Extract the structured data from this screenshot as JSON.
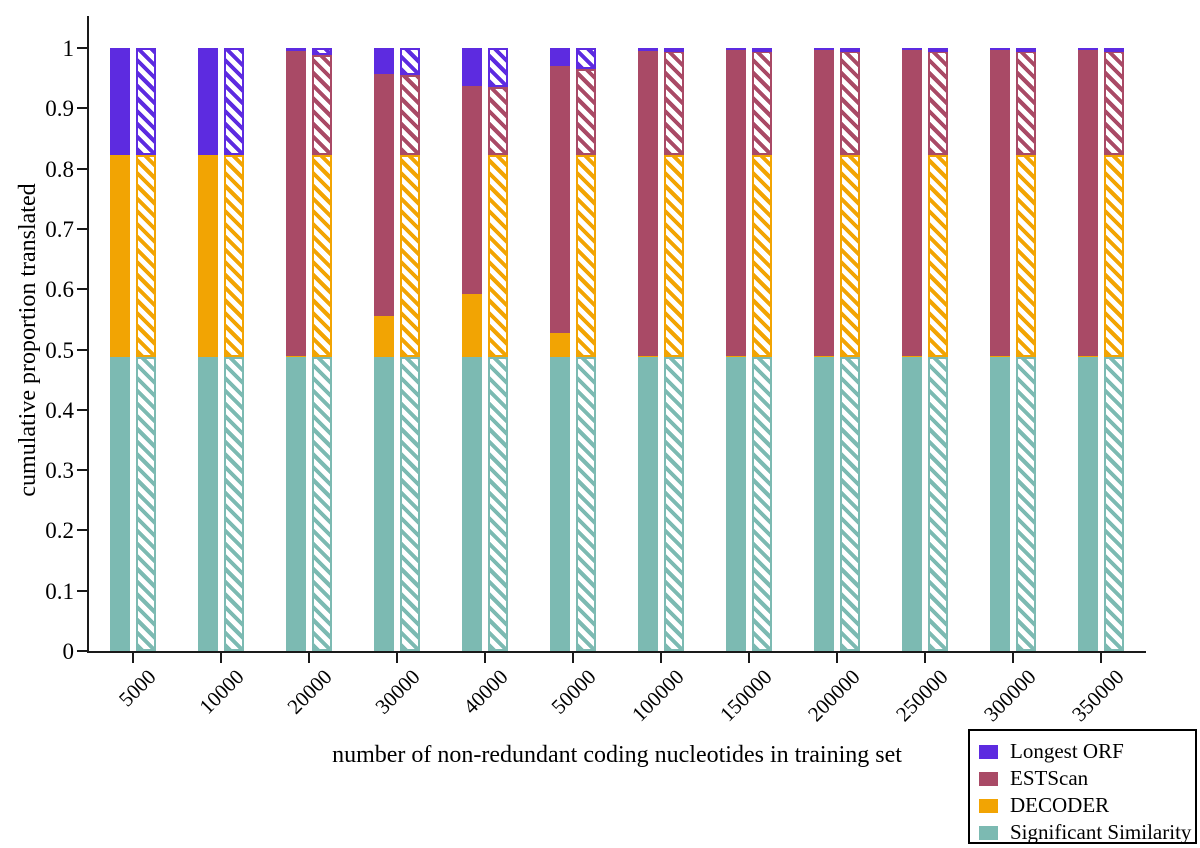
{
  "chart_data": {
    "type": "bar",
    "subtype": "stacked-paired-solid-and-hatched",
    "title": "",
    "xlabel": "number of non-redundant coding nucleotides in training set",
    "ylabel": "cumulative proportion translated",
    "ylim": [
      0,
      1
    ],
    "grid": false,
    "ytick_labels": [
      "0",
      "0.1",
      "0.2",
      "0.3",
      "0.4",
      "0.5",
      "0.6",
      "0.7",
      "0.8",
      "0.9",
      "1"
    ],
    "ytick_values": [
      0,
      0.1,
      0.2,
      0.3,
      0.4,
      0.5,
      0.6,
      0.7,
      0.8,
      0.9,
      1
    ],
    "categories": [
      "5000",
      "10000",
      "20000",
      "30000",
      "40000",
      "50000",
      "100000",
      "150000",
      "200000",
      "250000",
      "300000",
      "350000"
    ],
    "stack_order_bottom_to_top": [
      "Significant Similarity",
      "DECODER",
      "ESTScan",
      "Longest ORF"
    ],
    "colors": {
      "Longest ORF": "#5d2be0",
      "ESTScan": "#a94a66",
      "DECODER": "#f2a403",
      "Significant Similarity": "#7cbab2"
    },
    "series": [
      {
        "name": "solid",
        "style": "solid",
        "cumulative_tops": [
          [
            0.487,
            0.822,
            0.822,
            1.0
          ],
          [
            0.487,
            0.822,
            0.822,
            1.0
          ],
          [
            0.487,
            0.49,
            0.995,
            1.0
          ],
          [
            0.487,
            0.555,
            0.957,
            1.0
          ],
          [
            0.487,
            0.592,
            0.937,
            1.0
          ],
          [
            0.487,
            0.527,
            0.97,
            1.0
          ],
          [
            0.487,
            0.49,
            0.995,
            1.0
          ],
          [
            0.487,
            0.49,
            0.996,
            1.0
          ],
          [
            0.487,
            0.49,
            0.996,
            1.0
          ],
          [
            0.487,
            0.49,
            0.996,
            1.0
          ],
          [
            0.487,
            0.49,
            0.996,
            1.0
          ],
          [
            0.487,
            0.49,
            0.996,
            1.0
          ]
        ]
      },
      {
        "name": "hatched",
        "style": "hatched",
        "cumulative_tops": [
          [
            0.487,
            0.822,
            0.822,
            1.0
          ],
          [
            0.487,
            0.822,
            0.822,
            1.0
          ],
          [
            0.487,
            0.822,
            0.988,
            1.0
          ],
          [
            0.487,
            0.822,
            0.955,
            1.0
          ],
          [
            0.487,
            0.822,
            0.935,
            1.0
          ],
          [
            0.487,
            0.822,
            0.966,
            1.0
          ],
          [
            0.487,
            0.822,
            0.995,
            1.0
          ],
          [
            0.487,
            0.822,
            0.995,
            1.0
          ],
          [
            0.487,
            0.822,
            0.995,
            1.0
          ],
          [
            0.487,
            0.822,
            0.995,
            1.0
          ],
          [
            0.487,
            0.822,
            0.995,
            1.0
          ],
          [
            0.487,
            0.822,
            0.995,
            1.0
          ]
        ]
      }
    ],
    "legend_entries": [
      {
        "label": "Longest ORF",
        "color": "#5d2be0"
      },
      {
        "label": "ESTScan",
        "color": "#a94a66"
      },
      {
        "label": "DECODER",
        "color": "#f2a403"
      },
      {
        "label": "Significant Similarity",
        "color": "#7cbab2"
      }
    ],
    "legend_position": "bottom-right"
  }
}
